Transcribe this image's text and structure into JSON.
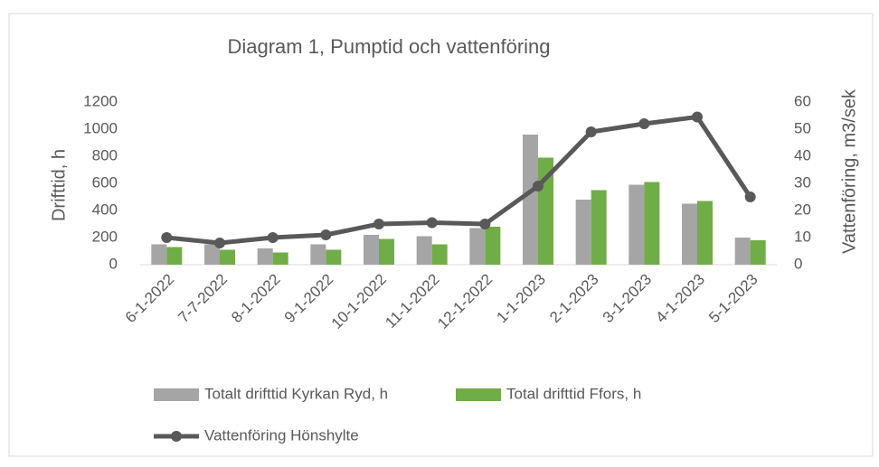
{
  "chart_data": {
    "type": "bar-line",
    "title": "Diagram 1, Pumptid och vattenföring",
    "y_label": "Drifttid, h",
    "y2_label": "Vattenföring, m3/sek",
    "categories": [
      "6-1-2022",
      "7-7-2022",
      "8-1-2022",
      "9-1-2022",
      "10-1-2022",
      "11-1-2022",
      "12-1-2022",
      "1-1-2023",
      "2-1-2023",
      "3-1-2023",
      "4-1-2023",
      "5-1-2023"
    ],
    "series": [
      {
        "name": "Totalt drifttid Kyrkan Ryd, h",
        "type": "bar",
        "color": "#a5a5a5",
        "values": [
          150,
          150,
          120,
          150,
          220,
          210,
          270,
          960,
          480,
          590,
          450,
          200
        ]
      },
      {
        "name": "Total drifttid Ffors, h",
        "type": "bar",
        "color": "#70ad47",
        "values": [
          130,
          110,
          90,
          110,
          190,
          150,
          280,
          790,
          550,
          610,
          470,
          180
        ]
      },
      {
        "name": "Vattenföring Hönshylte",
        "type": "line",
        "axis": "y2",
        "color": "#595959",
        "values": [
          10,
          8,
          10,
          11,
          15,
          15.5,
          15,
          29,
          49,
          52,
          54.5,
          25
        ]
      }
    ],
    "ylim": [
      0,
      1200
    ],
    "yticks": [
      0,
      200,
      400,
      600,
      800,
      1000,
      1200
    ],
    "y2lim": [
      0,
      60
    ],
    "y2ticks": [
      0,
      10,
      20,
      30,
      40,
      50,
      60
    ],
    "grid": false,
    "legend": "bottom"
  }
}
